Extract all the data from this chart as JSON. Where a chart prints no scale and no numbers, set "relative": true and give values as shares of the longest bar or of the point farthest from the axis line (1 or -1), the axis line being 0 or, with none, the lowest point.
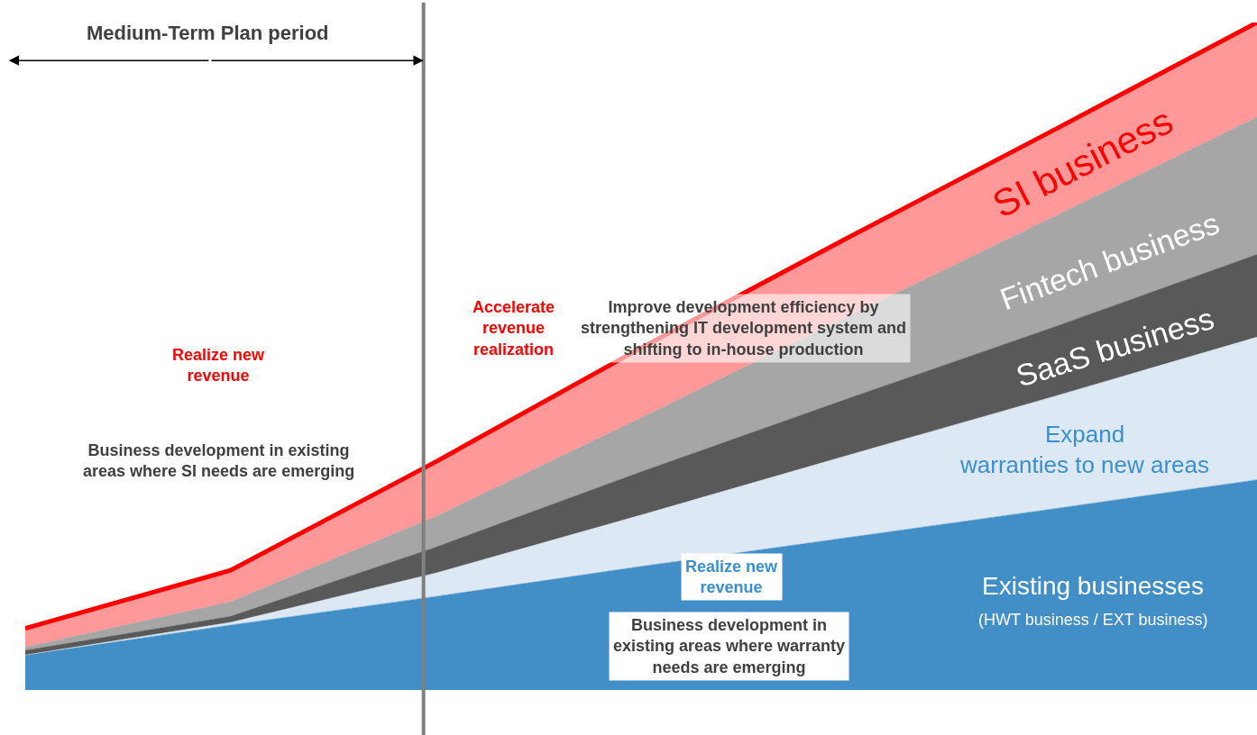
{
  "chart_data": {
    "type": "area",
    "stacked": true,
    "relative": true,
    "legend": false,
    "categories": [
      null,
      null,
      null,
      null,
      null,
      null,
      null
    ],
    "series": [
      {
        "name": "Existing businesses",
        "color": "#428fc8",
        "values": [
          0.051,
          0.096,
          0.139,
          0.184,
          0.227,
          0.27,
          0.314
        ]
      },
      {
        "name": "Expand warranties to new areas",
        "color": "#dce8f4",
        "values": [
          0.0,
          0.004,
          0.035,
          0.077,
          0.123,
          0.168,
          0.214
        ]
      },
      {
        "name": "SaaS business",
        "color": "#595959",
        "values": [
          0.007,
          0.009,
          0.039,
          0.065,
          0.085,
          0.104,
          0.124
        ]
      },
      {
        "name": "Fintech business",
        "color": "#a6a6a6",
        "values": [
          0.005,
          0.022,
          0.046,
          0.081,
          0.123,
          0.165,
          0.206
        ]
      },
      {
        "name": "SI business",
        "color": "#ff9999",
        "values": [
          0.028,
          0.047,
          0.082,
          0.105,
          0.118,
          0.13,
          0.142
        ]
      }
    ],
    "annotations": [
      "Medium-Term Plan period",
      "Realize new revenue",
      "Business development in existing areas where SI needs are emerging",
      "Accelerate revenue realization",
      "Improve development efficiency by strengthening IT development system and shifting to in-house production",
      "Realize new revenue",
      "Business development in existing areas where warranty needs are emerging",
      "(HWT business / EXT business)"
    ]
  }
}
